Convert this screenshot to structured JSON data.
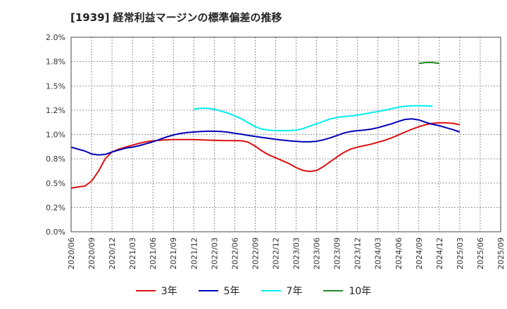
{
  "chart_data": {
    "type": "line",
    "title": "[1939]  経常利益マージンの標準偏差の推移",
    "xlabel": "",
    "ylabel": "",
    "ylim": [
      0,
      2.0
    ],
    "yticks": [
      "0.0%",
      "0.2%",
      "0.5%",
      "0.8%",
      "1.0%",
      "1.2%",
      "1.5%",
      "1.8%",
      "2.0%"
    ],
    "xticks": [
      "2020/06",
      "2020/09",
      "2020/12",
      "2021/03",
      "2021/06",
      "2021/09",
      "2021/12",
      "2022/03",
      "2022/06",
      "2022/09",
      "2022/12",
      "2023/03",
      "2023/06",
      "2023/09",
      "2023/12",
      "2024/03",
      "2024/06",
      "2024/09",
      "2024/12",
      "2025/03",
      "2025/06",
      "2025/09"
    ],
    "grid": true,
    "legend_position": "bottom",
    "series": [
      {
        "name": "3年",
        "color": "#dd1111",
        "start_index": 0,
        "values": [
          0.45,
          0.46,
          0.47,
          0.52,
          0.62,
          0.75,
          0.82,
          0.85,
          0.87,
          0.89,
          0.91,
          0.925,
          0.935,
          0.94,
          0.945,
          0.947,
          0.948,
          0.948,
          0.947,
          0.945,
          0.942,
          0.94,
          0.938,
          0.937,
          0.937,
          0.936,
          0.92,
          0.88,
          0.83,
          0.79,
          0.76,
          0.73,
          0.7,
          0.66,
          0.63,
          0.62,
          0.63,
          0.67,
          0.72,
          0.77,
          0.815,
          0.85,
          0.87,
          0.885,
          0.9,
          0.92,
          0.94,
          0.965,
          0.995,
          1.025,
          1.055,
          1.08,
          1.1,
          1.115,
          1.12,
          1.12,
          1.115,
          1.1
        ]
      },
      {
        "name": "5年",
        "color": "#0000bb",
        "start_index": 0,
        "values": [
          0.87,
          0.85,
          0.83,
          0.8,
          0.79,
          0.795,
          0.82,
          0.84,
          0.86,
          0.87,
          0.885,
          0.905,
          0.925,
          0.95,
          0.975,
          0.995,
          1.01,
          1.02,
          1.025,
          1.03,
          1.033,
          1.033,
          1.03,
          1.023,
          1.013,
          1.003,
          0.99,
          0.98,
          0.97,
          0.96,
          0.95,
          0.942,
          0.935,
          0.93,
          0.925,
          0.925,
          0.93,
          0.945,
          0.965,
          0.99,
          1.015,
          1.03,
          1.04,
          1.045,
          1.055,
          1.07,
          1.09,
          1.11,
          1.135,
          1.155,
          1.16,
          1.15,
          1.125,
          1.105,
          1.09,
          1.07,
          1.05,
          1.025
        ]
      },
      {
        "name": "7年",
        "color": "#00eeee",
        "start_index": 18,
        "values": [
          1.26,
          1.27,
          1.27,
          1.26,
          1.24,
          1.22,
          1.19,
          1.16,
          1.12,
          1.08,
          1.055,
          1.045,
          1.04,
          1.04,
          1.04,
          1.045,
          1.06,
          1.085,
          1.11,
          1.135,
          1.16,
          1.175,
          1.185,
          1.19,
          1.2,
          1.21,
          1.225,
          1.235,
          1.25,
          1.265,
          1.28,
          1.29,
          1.295,
          1.295,
          1.295,
          1.29
        ]
      },
      {
        "name": "10年",
        "color": "#228822",
        "start_index": 51,
        "values": [
          1.73,
          1.74,
          1.74,
          1.73
        ]
      }
    ]
  }
}
